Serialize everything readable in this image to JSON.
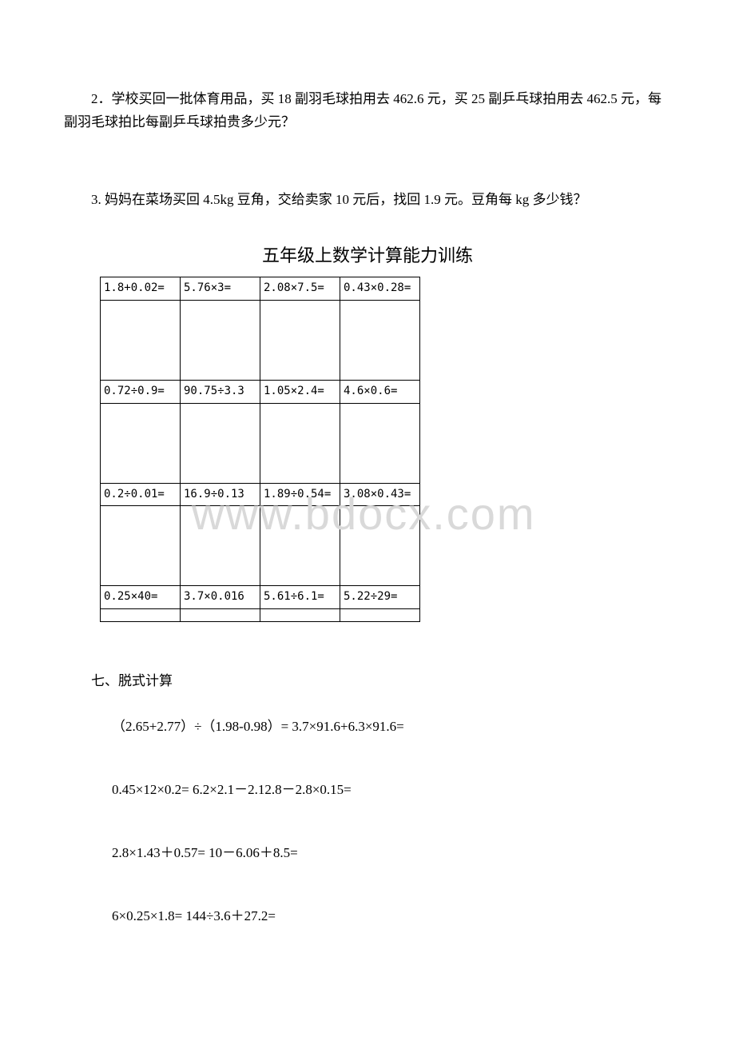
{
  "problems": {
    "p2": "2．学校买回一批体育用品，买 18 副羽毛球拍用去 462.6 元，买 25 副乒乓球拍用去 462.5 元，每副羽毛球拍比每副乒乓球拍贵多少元？",
    "p3": "3. 妈妈在菜场买回 4.5kg 豆角，交给卖家 10 元后，找回 1.9 元。豆角每 kg 多少钱？"
  },
  "grid_title": "五年级上数学计算能力训练",
  "grid": {
    "row1": [
      "1.8+0.02=",
      "5.76×3=",
      "2.08×7.5=",
      "0.43×0.28="
    ],
    "row2": [
      "0.72÷0.9=",
      "90.75÷3.3",
      "1.05×2.4=",
      "4.6×0.6="
    ],
    "row3": [
      "0.2÷0.01=",
      "16.9÷0.13",
      "1.89÷0.54=",
      "3.08×0.43="
    ],
    "row4": [
      "0.25×40=",
      "3.7×0.016",
      "5.61÷6.1=",
      "5.22÷29="
    ]
  },
  "section7": {
    "title": "七、脱式计算",
    "lines": [
      "（2.65+2.77）÷（1.98-0.98）= 3.7×91.6+6.3×91.6=",
      "0.45×12×0.2= 6.2×2.1－2.12.8－2.8×0.15=",
      "2.8×1.43＋0.57= 10－6.06＋8.5=",
      "6×0.25×1.8= 144÷3.6＋27.2="
    ]
  },
  "watermark": "www.bdocx.com",
  "colors": {
    "text": "#000000",
    "background": "#ffffff",
    "watermark": "#d9d9d9",
    "border": "#000000"
  }
}
